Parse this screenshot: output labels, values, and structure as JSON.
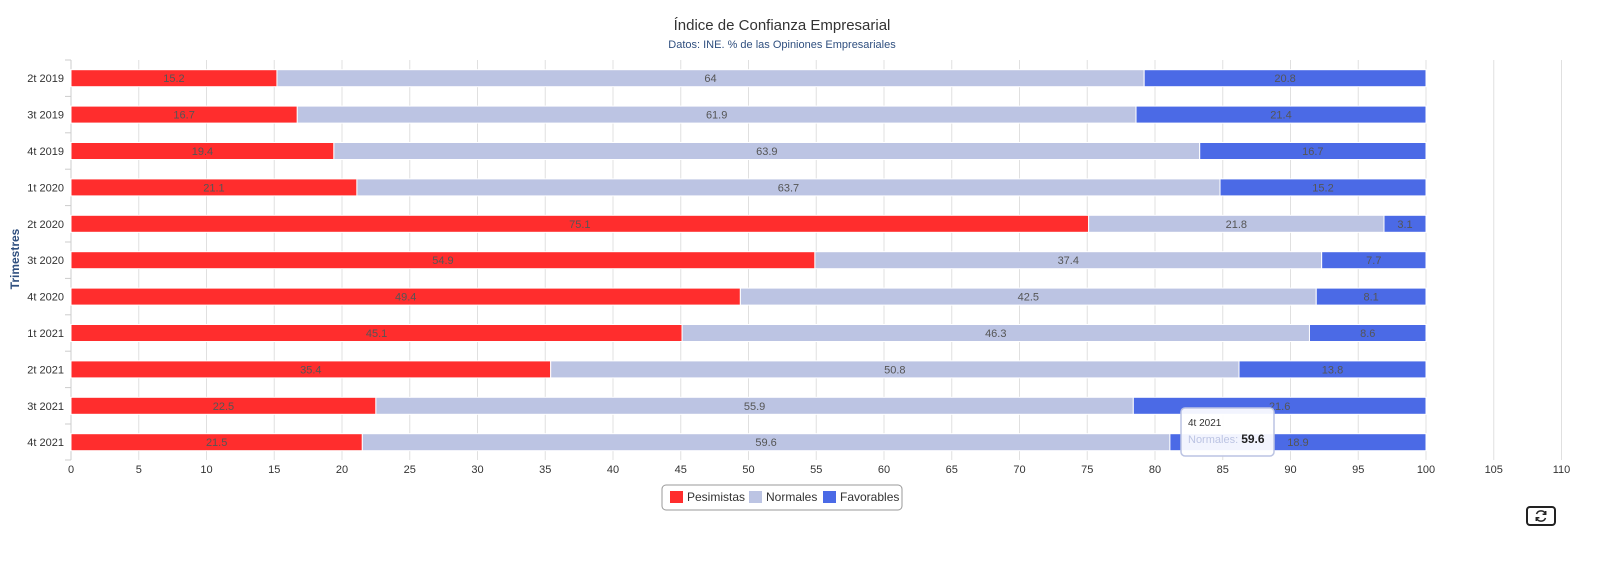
{
  "chart_data": {
    "type": "bar",
    "orientation": "horizontal",
    "stacked": true,
    "title": "Índice de Confianza Empresarial",
    "subtitle": "Datos: INE. % de las Opiniones Empresariales",
    "ylabel": "Trimestres",
    "xlabel": "",
    "xlim": [
      0,
      110
    ],
    "xticks": [
      0,
      5,
      10,
      15,
      20,
      25,
      30,
      35,
      40,
      45,
      50,
      55,
      60,
      65,
      70,
      75,
      80,
      85,
      90,
      95,
      100,
      105,
      110
    ],
    "categories": [
      "2t 2019",
      "3t 2019",
      "4t 2019",
      "1t 2020",
      "2t 2020",
      "3t 2020",
      "4t 2020",
      "1t 2021",
      "2t 2021",
      "3t 2021",
      "4t 2021"
    ],
    "series": [
      {
        "name": "Pesimistas",
        "color": "#ff2d2d",
        "values": [
          15.2,
          16.7,
          19.4,
          21.1,
          75.1,
          54.9,
          49.4,
          45.1,
          35.4,
          22.5,
          21.5
        ]
      },
      {
        "name": "Normales",
        "color": "#bcc4e3",
        "values": [
          64,
          61.9,
          63.9,
          63.7,
          21.8,
          37.4,
          42.5,
          46.3,
          50.8,
          55.9,
          59.6
        ]
      },
      {
        "name": "Favorables",
        "color": "#4b6ae6",
        "values": [
          20.8,
          21.4,
          16.7,
          15.2,
          3.1,
          7.7,
          8.1,
          8.6,
          13.8,
          21.6,
          18.9
        ]
      }
    ],
    "legend_position": "bottom-center",
    "grid": true
  },
  "tooltip": {
    "header": "4t 2021",
    "series_name": "Normales",
    "value": "59.6"
  },
  "controls": {
    "reset_icon": "refresh-icon"
  }
}
